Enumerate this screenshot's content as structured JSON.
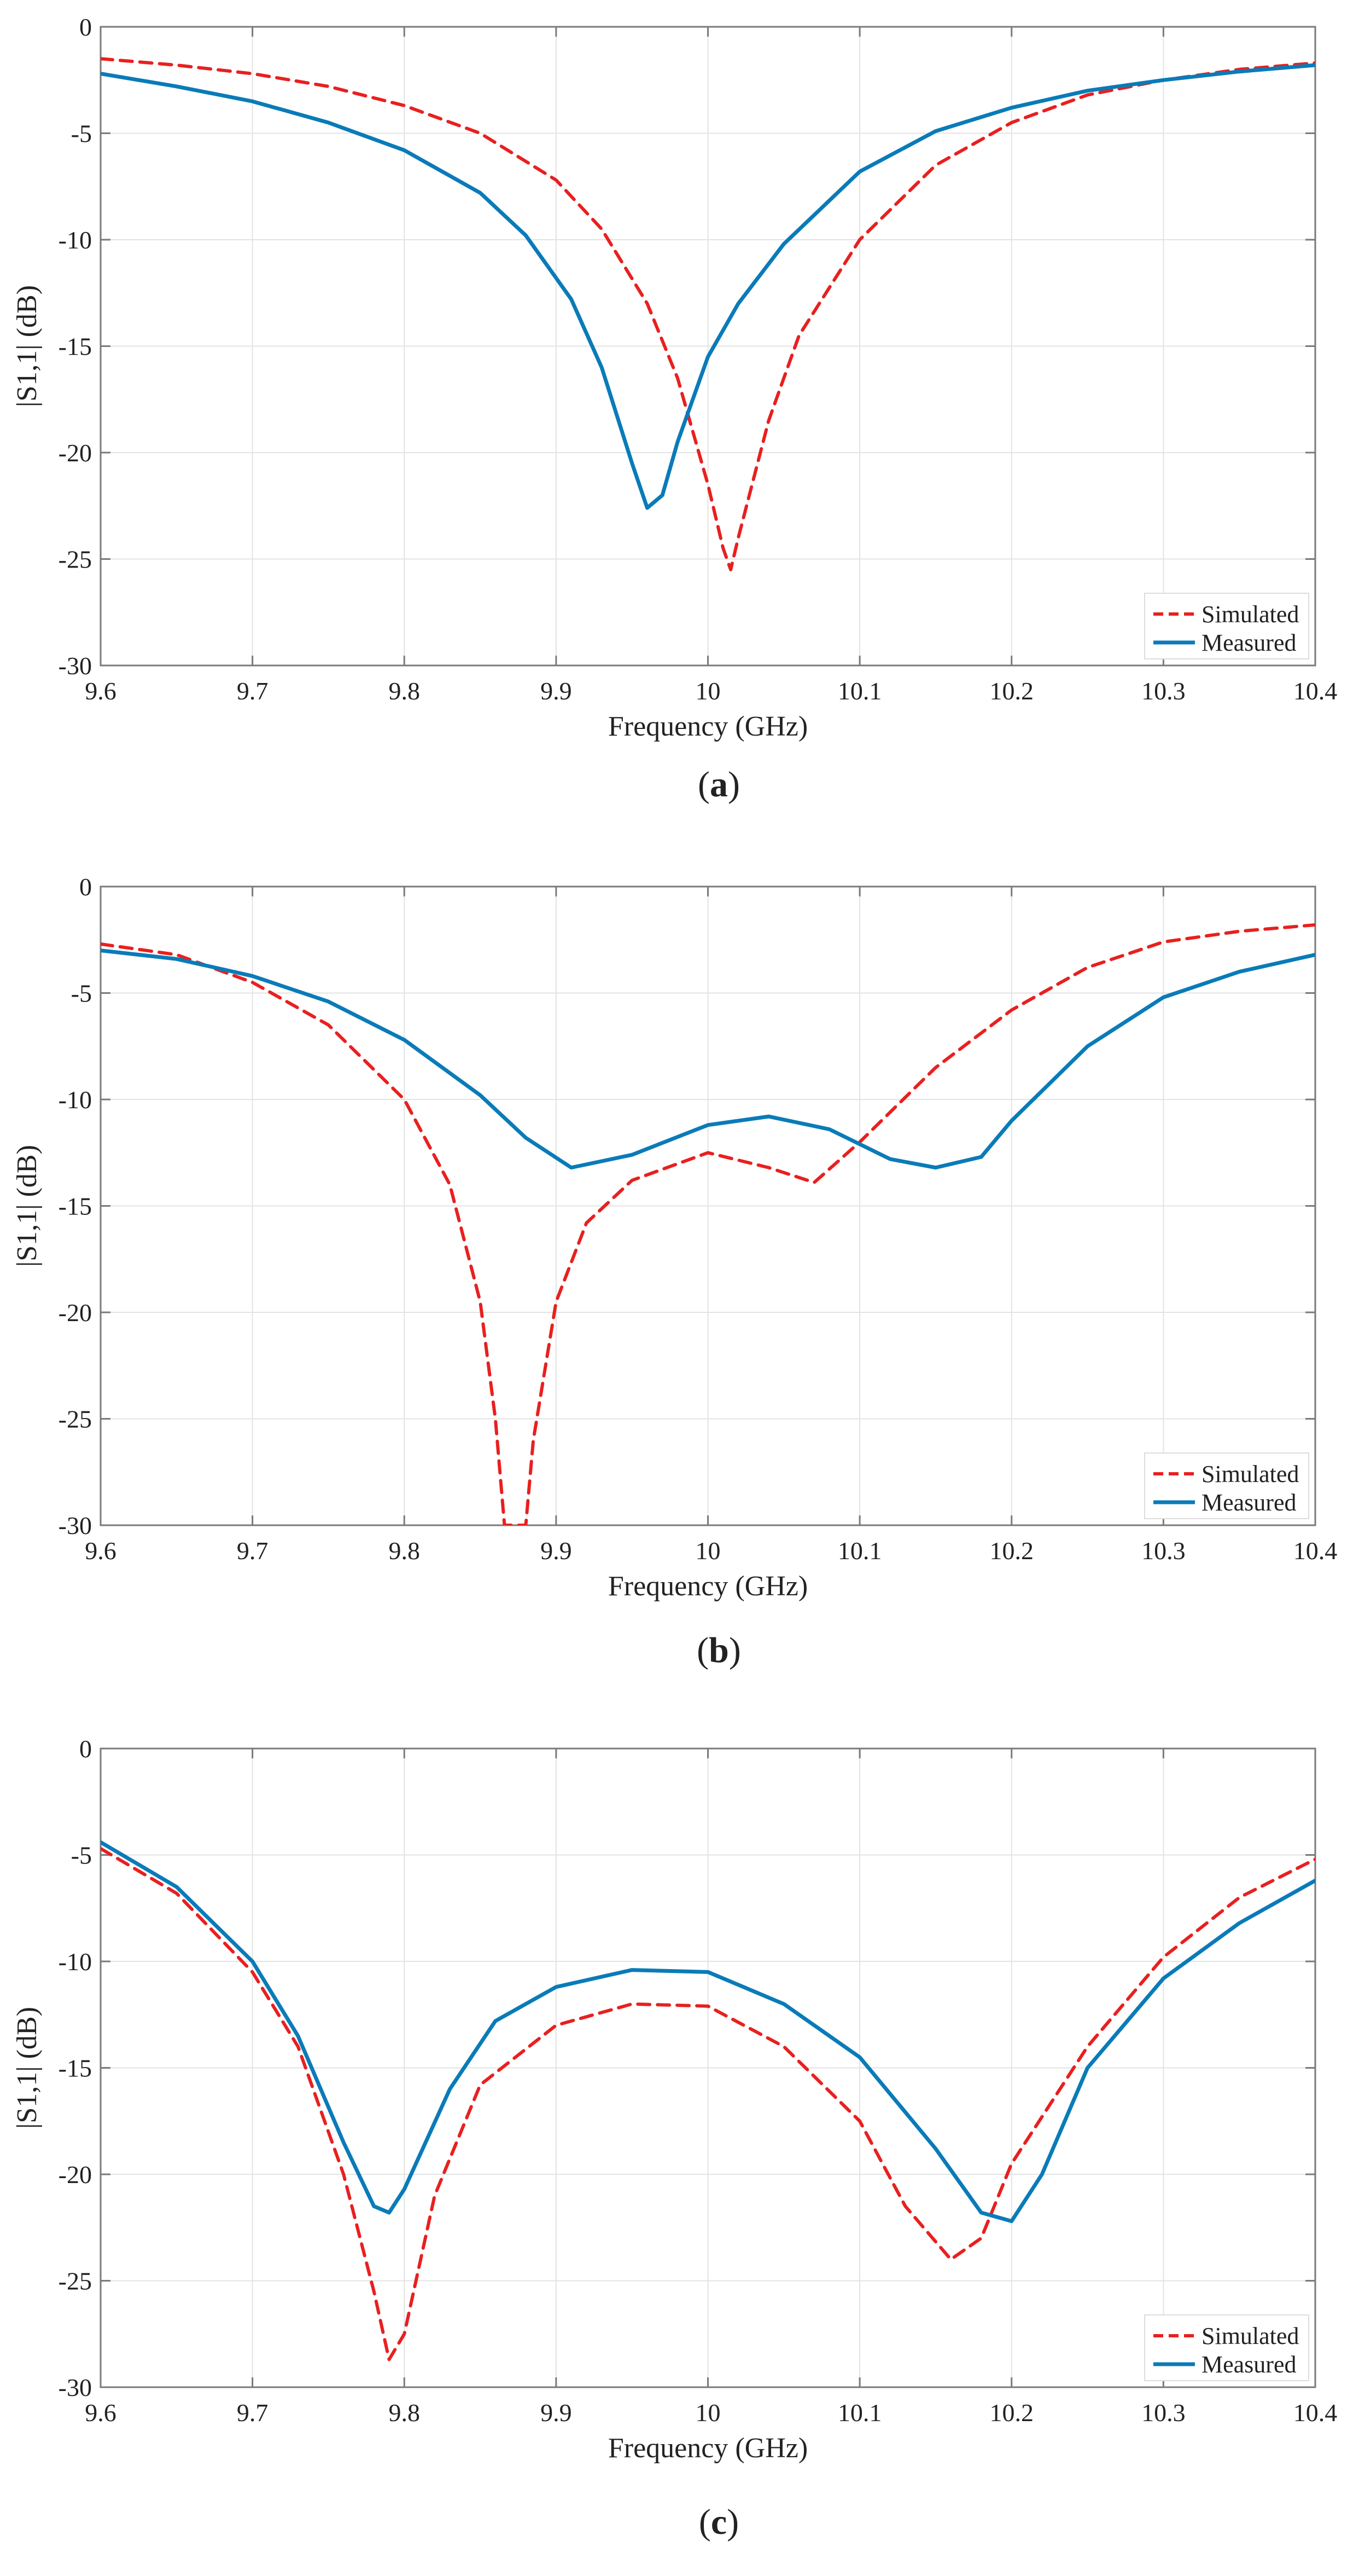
{
  "figure": {
    "colors": {
      "simulated": "#e8201f",
      "measured": "#0a7bb8",
      "grid": "#e3e3e3",
      "axis": "#7a7a7a",
      "text": "#222222"
    }
  },
  "chart_data": [
    {
      "type": "line",
      "panel": "a",
      "caption_letter": "a",
      "xlabel": "Frequency (GHz)",
      "ylabel": "|S1,1| (dB)",
      "xlim": [
        9.6,
        10.4
      ],
      "ylim": [
        -30,
        0
      ],
      "xticks": [
        9.6,
        9.7,
        9.8,
        9.9,
        10,
        10.1,
        10.2,
        10.3,
        10.4
      ],
      "yticks": [
        0,
        -5,
        -10,
        -15,
        -20,
        -25,
        -30
      ],
      "grid": true,
      "legend_position": "bottom-right",
      "series": [
        {
          "name": "Simulated",
          "style": "dashed",
          "x": [
            9.6,
            9.65,
            9.7,
            9.75,
            9.8,
            9.85,
            9.9,
            9.93,
            9.96,
            9.98,
            10.0,
            10.01,
            10.015,
            10.02,
            10.04,
            10.06,
            10.1,
            10.15,
            10.2,
            10.25,
            10.3,
            10.35,
            10.4
          ],
          "y": [
            -1.5,
            -1.8,
            -2.2,
            -2.8,
            -3.7,
            -5.0,
            -7.2,
            -9.5,
            -13.0,
            -16.5,
            -21.5,
            -24.5,
            -25.5,
            -24.0,
            -18.5,
            -14.5,
            -10.0,
            -6.5,
            -4.5,
            -3.2,
            -2.5,
            -2.0,
            -1.7
          ]
        },
        {
          "name": "Measured",
          "style": "solid",
          "x": [
            9.6,
            9.65,
            9.7,
            9.75,
            9.8,
            9.85,
            9.88,
            9.91,
            9.93,
            9.95,
            9.96,
            9.97,
            9.98,
            10.0,
            10.02,
            10.05,
            10.1,
            10.15,
            10.2,
            10.25,
            10.3,
            10.35,
            10.4
          ],
          "y": [
            -2.2,
            -2.8,
            -3.5,
            -4.5,
            -5.8,
            -7.8,
            -9.8,
            -12.8,
            -16.0,
            -20.5,
            -22.6,
            -22.0,
            -19.5,
            -15.5,
            -13.0,
            -10.2,
            -6.8,
            -4.9,
            -3.8,
            -3.0,
            -2.5,
            -2.1,
            -1.8
          ]
        }
      ]
    },
    {
      "type": "line",
      "panel": "b",
      "caption_letter": "b",
      "xlabel": "Frequency (GHz)",
      "ylabel": "|S1,1| (dB)",
      "xlim": [
        9.6,
        10.4
      ],
      "ylim": [
        -30,
        0
      ],
      "xticks": [
        9.6,
        9.7,
        9.8,
        9.9,
        10,
        10.1,
        10.2,
        10.3,
        10.4
      ],
      "yticks": [
        0,
        -5,
        -10,
        -15,
        -20,
        -25,
        -30
      ],
      "grid": true,
      "legend_position": "bottom-right",
      "series": [
        {
          "name": "Simulated",
          "style": "dashed",
          "x": [
            9.6,
            9.65,
            9.7,
            9.75,
            9.8,
            9.83,
            9.85,
            9.86,
            9.866,
            9.88,
            9.885,
            9.9,
            9.92,
            9.95,
            10.0,
            10.04,
            10.07,
            10.1,
            10.15,
            10.2,
            10.25,
            10.3,
            10.35,
            10.4
          ],
          "y": [
            -2.7,
            -3.2,
            -4.5,
            -6.5,
            -10.0,
            -14.0,
            -19.5,
            -25.0,
            -30.0,
            -30.0,
            -26.0,
            -19.5,
            -15.8,
            -13.8,
            -12.5,
            -13.2,
            -13.9,
            -12.0,
            -8.5,
            -5.8,
            -3.8,
            -2.6,
            -2.1,
            -1.8
          ]
        },
        {
          "name": "Measured",
          "style": "solid",
          "x": [
            9.6,
            9.65,
            9.7,
            9.75,
            9.8,
            9.85,
            9.88,
            9.91,
            9.95,
            10.0,
            10.04,
            10.08,
            10.12,
            10.15,
            10.18,
            10.2,
            10.25,
            10.3,
            10.35,
            10.4
          ],
          "y": [
            -3.0,
            -3.4,
            -4.2,
            -5.4,
            -7.2,
            -9.8,
            -11.8,
            -13.2,
            -12.6,
            -11.2,
            -10.8,
            -11.4,
            -12.8,
            -13.2,
            -12.7,
            -11.0,
            -7.5,
            -5.2,
            -4.0,
            -3.2
          ]
        }
      ]
    },
    {
      "type": "line",
      "panel": "c",
      "caption_letter": "c",
      "xlabel": "Frequency (GHz)",
      "ylabel": "|S1,1| (dB)",
      "xlim": [
        9.6,
        10.4
      ],
      "ylim": [
        -30,
        0
      ],
      "xticks": [
        9.6,
        9.7,
        9.8,
        9.9,
        10,
        10.1,
        10.2,
        10.3,
        10.4
      ],
      "yticks": [
        0,
        -5,
        -10,
        -15,
        -20,
        -25,
        -30
      ],
      "grid": true,
      "legend_position": "bottom-right",
      "series": [
        {
          "name": "Simulated",
          "style": "dashed",
          "x": [
            9.6,
            9.65,
            9.7,
            9.73,
            9.76,
            9.78,
            9.79,
            9.8,
            9.82,
            9.85,
            9.9,
            9.95,
            10.0,
            10.05,
            10.1,
            10.13,
            10.16,
            10.18,
            10.2,
            10.25,
            10.3,
            10.35,
            10.4
          ],
          "y": [
            -4.7,
            -6.8,
            -10.5,
            -14.0,
            -20.0,
            -25.5,
            -28.7,
            -27.5,
            -21.0,
            -15.8,
            -13.0,
            -12.0,
            -12.1,
            -14.0,
            -17.5,
            -21.5,
            -24.0,
            -23.0,
            -19.5,
            -14.0,
            -9.8,
            -7.0,
            -5.2
          ]
        },
        {
          "name": "Measured",
          "style": "solid",
          "x": [
            9.6,
            9.65,
            9.7,
            9.73,
            9.76,
            9.78,
            9.79,
            9.8,
            9.83,
            9.86,
            9.9,
            9.95,
            10.0,
            10.05,
            10.1,
            10.15,
            10.18,
            10.2,
            10.22,
            10.25,
            10.3,
            10.35,
            10.4
          ],
          "y": [
            -4.4,
            -6.5,
            -10.0,
            -13.5,
            -18.5,
            -21.5,
            -21.8,
            -20.7,
            -16.0,
            -12.8,
            -11.2,
            -10.4,
            -10.5,
            -12.0,
            -14.5,
            -18.8,
            -21.8,
            -22.2,
            -20.0,
            -15.0,
            -10.8,
            -8.2,
            -6.2
          ]
        }
      ]
    }
  ]
}
